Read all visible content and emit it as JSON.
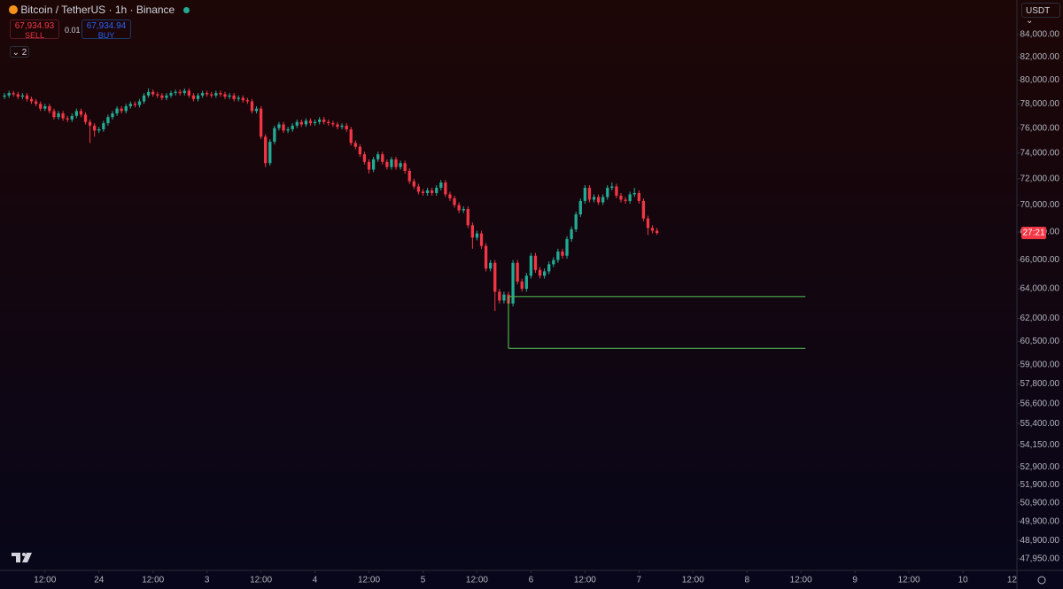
{
  "header": {
    "symbol": "Bitcoin / TetherUS · 1h · Binance",
    "sell_price": "67,934.93",
    "sell_label": "SELL",
    "quantity": "0.01",
    "buy_price": "67,934.94",
    "buy_label": "BUY",
    "indicators": "2",
    "currency": "USDT",
    "countdown": "27:21"
  },
  "chart_data": {
    "type": "candlestick",
    "log_scale": true,
    "grid": false,
    "up_color": "#22ab94",
    "down_color": "#f23645",
    "xlim": [
      2,
      228
    ],
    "ylim": [
      47400,
      87160
    ],
    "xticks": [
      {
        "value": 12,
        "label": "12:00"
      },
      24,
      {
        "value": 36,
        "label": "12:00"
      },
      {
        "value": 48,
        "label": "3"
      },
      {
        "value": 60,
        "label": "12:00"
      },
      {
        "value": 72,
        "label": "4"
      },
      {
        "value": 84,
        "label": "12:00"
      },
      {
        "value": 96,
        "label": "5"
      },
      {
        "value": 108,
        "label": "12:00"
      },
      {
        "value": 120,
        "label": "6"
      },
      {
        "value": 132,
        "label": "12:00"
      },
      {
        "value": 144,
        "label": "7"
      },
      {
        "value": 156,
        "label": "12:00"
      },
      {
        "value": 168,
        "label": "8"
      },
      {
        "value": 180,
        "label": "12:00"
      },
      {
        "value": 192,
        "label": "9"
      },
      {
        "value": 204,
        "label": "12:00"
      },
      {
        "value": 216,
        "label": "10"
      },
      {
        "value": 228,
        "label": "12"
      }
    ],
    "yticks": [
      {
        "value": 84000,
        "label": "84,000.00"
      },
      {
        "value": 82000,
        "label": "82,000.00"
      },
      {
        "value": 80000,
        "label": "80,000.00"
      },
      {
        "value": 78000,
        "label": "78,000.00"
      },
      {
        "value": 76000,
        "label": "76,000.00"
      },
      {
        "value": 74000,
        "label": "74,000.00"
      },
      {
        "value": 72000,
        "label": "72,000.00"
      },
      {
        "value": 70000,
        "label": "70,000.00"
      },
      {
        "value": 68000,
        "label": "68,000.00"
      },
      {
        "value": 66000,
        "label": "66,000.00"
      },
      {
        "value": 64000,
        "label": "64,000.00"
      },
      {
        "value": 62000,
        "label": "62,000.00"
      },
      {
        "value": 60500,
        "label": "60,500.00"
      },
      {
        "value": 59000,
        "label": "59,000.00"
      },
      {
        "value": 57800,
        "label": "57,800.00"
      },
      {
        "value": 56600,
        "label": "56,600.00"
      },
      {
        "value": 55400,
        "label": "55,400.00"
      },
      {
        "value": 54150,
        "label": "54,150.00"
      },
      {
        "value": 52900,
        "label": "52,900.00"
      },
      {
        "value": 51900,
        "label": "51,900.00"
      },
      {
        "value": 50900,
        "label": "50,900.00"
      },
      {
        "value": 49900,
        "label": "49,900.00"
      },
      {
        "value": 48900,
        "label": "48,900.00"
      },
      {
        "value": 47950,
        "label": "47,950.00"
      }
    ],
    "drawing": {
      "color": "#4caf50",
      "x": [
        115,
        181
      ],
      "levels": [
        63470,
        60050
      ]
    },
    "x": [
      3,
      4,
      5,
      6,
      7,
      8,
      9,
      10,
      11,
      12,
      13,
      14,
      15,
      16,
      17,
      18,
      19,
      20,
      21,
      22,
      23,
      24,
      25,
      26,
      27,
      28,
      29,
      30,
      31,
      32,
      33,
      34,
      35,
      36,
      37,
      38,
      39,
      40,
      41,
      42,
      43,
      44,
      45,
      46,
      47,
      48,
      49,
      50,
      51,
      52,
      53,
      54,
      55,
      56,
      57,
      58,
      59,
      60,
      61,
      62,
      63,
      64,
      65,
      66,
      67,
      68,
      69,
      70,
      71,
      72,
      73,
      74,
      75,
      76,
      77,
      78,
      79,
      80,
      81,
      82,
      83,
      84,
      85,
      86,
      87,
      88,
      89,
      90,
      91,
      92,
      93,
      94,
      95,
      96,
      97,
      98,
      99,
      100,
      101,
      102,
      103,
      104,
      105,
      106,
      107,
      108,
      109,
      110,
      111,
      112,
      113,
      114,
      115,
      116,
      117,
      118,
      119,
      120,
      121,
      122,
      123,
      124,
      125,
      126,
      127,
      128,
      129,
      130,
      131,
      132,
      133,
      134,
      135,
      136,
      137,
      138,
      139,
      140,
      141,
      142,
      143,
      144,
      145,
      146,
      147,
      148
    ],
    "ohlc": [
      [
        78600,
        78900,
        78400,
        78700
      ],
      [
        78700,
        79100,
        78500,
        78900
      ],
      [
        78900,
        79100,
        78600,
        78800
      ],
      [
        78800,
        79000,
        78400,
        78600
      ],
      [
        78600,
        78900,
        78400,
        78700
      ],
      [
        78700,
        78900,
        78200,
        78400
      ],
      [
        78400,
        78600,
        78000,
        78200
      ],
      [
        78200,
        78400,
        77800,
        78000
      ],
      [
        78000,
        78200,
        77400,
        77600
      ],
      [
        77600,
        78000,
        77400,
        77800
      ],
      [
        77800,
        78000,
        77200,
        77400
      ],
      [
        77400,
        77600,
        76700,
        76900
      ],
      [
        76900,
        77400,
        76700,
        77200
      ],
      [
        77200,
        77400,
        76600,
        76800
      ],
      [
        76800,
        77000,
        76500,
        76700
      ],
      [
        76700,
        77200,
        76500,
        77000
      ],
      [
        77000,
        77600,
        76800,
        77400
      ],
      [
        77400,
        77600,
        76900,
        77100
      ],
      [
        77100,
        77300,
        76300,
        76500
      ],
      [
        76500,
        76700,
        74800,
        76200
      ],
      [
        76200,
        76400,
        75300,
        75800
      ],
      [
        75800,
        76100,
        75600,
        75900
      ],
      [
        75900,
        76600,
        75700,
        76400
      ],
      [
        76400,
        77100,
        76200,
        76900
      ],
      [
        76900,
        77400,
        76700,
        77200
      ],
      [
        77200,
        77800,
        77000,
        77600
      ],
      [
        77600,
        77800,
        77200,
        77400
      ],
      [
        77400,
        78000,
        77200,
        77800
      ],
      [
        77800,
        78200,
        77600,
        78000
      ],
      [
        78000,
        78200,
        77700,
        77900
      ],
      [
        77900,
        78400,
        77700,
        78200
      ],
      [
        78200,
        78900,
        78000,
        78700
      ],
      [
        78700,
        79300,
        78500,
        79000
      ],
      [
        79000,
        79200,
        78600,
        78800
      ],
      [
        78800,
        79000,
        78500,
        78700
      ],
      [
        78700,
        78900,
        78300,
        78500
      ],
      [
        78500,
        78900,
        78300,
        78700
      ],
      [
        78700,
        79100,
        78500,
        78900
      ],
      [
        78900,
        79200,
        78700,
        79000
      ],
      [
        79000,
        79200,
        78700,
        78900
      ],
      [
        78900,
        79300,
        78700,
        79100
      ],
      [
        79100,
        79300,
        78500,
        78700
      ],
      [
        78700,
        78900,
        78200,
        78400
      ],
      [
        78400,
        78900,
        78200,
        78700
      ],
      [
        78700,
        79100,
        78500,
        78900
      ],
      [
        78900,
        79100,
        78600,
        78800
      ],
      [
        78800,
        79000,
        78500,
        78700
      ],
      [
        78700,
        79100,
        78500,
        78900
      ],
      [
        78900,
        79100,
        78600,
        78800
      ],
      [
        78800,
        79000,
        78400,
        78600
      ],
      [
        78600,
        78900,
        78400,
        78700
      ],
      [
        78700,
        78900,
        78200,
        78400
      ],
      [
        78400,
        78700,
        78200,
        78500
      ],
      [
        78500,
        78700,
        78100,
        78300
      ],
      [
        78300,
        78500,
        78000,
        78200
      ],
      [
        78200,
        78400,
        77200,
        77400
      ],
      [
        77400,
        77800,
        77200,
        77600
      ],
      [
        77600,
        77800,
        75100,
        75300
      ],
      [
        75300,
        75500,
        72900,
        73200
      ],
      [
        73200,
        75100,
        73000,
        74900
      ],
      [
        74900,
        76200,
        74700,
        76000
      ],
      [
        76000,
        76500,
        75800,
        76300
      ],
      [
        76300,
        76500,
        75600,
        75800
      ],
      [
        75800,
        76100,
        75600,
        75900
      ],
      [
        75900,
        76400,
        75700,
        76200
      ],
      [
        76200,
        76700,
        76000,
        76500
      ],
      [
        76500,
        76700,
        76100,
        76300
      ],
      [
        76300,
        76800,
        76100,
        76600
      ],
      [
        76600,
        76800,
        76200,
        76400
      ],
      [
        76400,
        76700,
        76200,
        76500
      ],
      [
        76500,
        76900,
        76300,
        76700
      ],
      [
        76700,
        76900,
        76300,
        76500
      ],
      [
        76500,
        76700,
        76200,
        76400
      ],
      [
        76400,
        76600,
        76100,
        76300
      ],
      [
        76300,
        76500,
        75900,
        76100
      ],
      [
        76100,
        76400,
        75900,
        76200
      ],
      [
        76200,
        76400,
        75700,
        75900
      ],
      [
        75900,
        76100,
        74600,
        74800
      ],
      [
        74800,
        75000,
        74300,
        74500
      ],
      [
        74500,
        74700,
        73700,
        73900
      ],
      [
        73900,
        74100,
        73100,
        73300
      ],
      [
        73300,
        73500,
        72400,
        72700
      ],
      [
        72700,
        73700,
        72500,
        73500
      ],
      [
        73500,
        74100,
        73300,
        73900
      ],
      [
        73900,
        74100,
        73100,
        73300
      ],
      [
        73300,
        73500,
        72700,
        72900
      ],
      [
        72900,
        73700,
        72700,
        73500
      ],
      [
        73500,
        73700,
        72700,
        72900
      ],
      [
        72900,
        73400,
        72700,
        73200
      ],
      [
        73200,
        73400,
        72400,
        72600
      ],
      [
        72600,
        72800,
        71600,
        71800
      ],
      [
        71800,
        72000,
        71200,
        71400
      ],
      [
        71400,
        71600,
        70800,
        71000
      ],
      [
        71000,
        71200,
        70700,
        70900
      ],
      [
        70900,
        71300,
        70700,
        71100
      ],
      [
        71100,
        71300,
        70700,
        70900
      ],
      [
        70900,
        71500,
        70700,
        71300
      ],
      [
        71300,
        71900,
        71100,
        71700
      ],
      [
        71700,
        71900,
        70600,
        70800
      ],
      [
        70800,
        71000,
        70300,
        70500
      ],
      [
        70500,
        70700,
        69800,
        70000
      ],
      [
        70000,
        70200,
        69400,
        69600
      ],
      [
        69600,
        69900,
        69400,
        69700
      ],
      [
        69700,
        69900,
        68300,
        68500
      ],
      [
        68500,
        68700,
        66800,
        67600
      ],
      [
        67600,
        68100,
        67400,
        67900
      ],
      [
        67900,
        68100,
        66800,
        67000
      ],
      [
        67000,
        67200,
        65200,
        65400
      ],
      [
        65400,
        66000,
        65200,
        65800
      ],
      [
        65800,
        66000,
        62500,
        63800
      ],
      [
        63800,
        64000,
        63000,
        63200
      ],
      [
        63200,
        63800,
        63000,
        63600
      ],
      [
        63600,
        63800,
        62800,
        63000
      ],
      [
        63000,
        66000,
        62800,
        65800
      ],
      [
        65800,
        66000,
        64300,
        64500
      ],
      [
        64500,
        64700,
        63800,
        64000
      ],
      [
        64000,
        65100,
        63800,
        64900
      ],
      [
        64900,
        66500,
        64700,
        66300
      ],
      [
        66300,
        66500,
        65100,
        65300
      ],
      [
        65300,
        65500,
        64700,
        64900
      ],
      [
        64900,
        65400,
        64700,
        65200
      ],
      [
        65200,
        65900,
        65000,
        65700
      ],
      [
        65700,
        66200,
        65500,
        66000
      ],
      [
        66000,
        66800,
        65800,
        66600
      ],
      [
        66600,
        66800,
        66100,
        66300
      ],
      [
        66300,
        67700,
        66100,
        67500
      ],
      [
        67500,
        68400,
        67300,
        68200
      ],
      [
        68200,
        69500,
        68000,
        69300
      ],
      [
        69300,
        70500,
        69100,
        70300
      ],
      [
        70300,
        71500,
        70100,
        71300
      ],
      [
        71300,
        71500,
        70200,
        70400
      ],
      [
        70400,
        70800,
        70200,
        70600
      ],
      [
        70600,
        70800,
        70000,
        70200
      ],
      [
        70200,
        70800,
        70000,
        70600
      ],
      [
        70600,
        71500,
        70400,
        71300
      ],
      [
        71300,
        71700,
        71100,
        71400
      ],
      [
        71400,
        71600,
        70500,
        70700
      ],
      [
        70700,
        70900,
        70200,
        70400
      ],
      [
        70400,
        70600,
        70100,
        70300
      ],
      [
        70300,
        71000,
        70100,
        70800
      ],
      [
        70800,
        71300,
        70600,
        70900
      ],
      [
        70900,
        71100,
        70100,
        70300
      ],
      [
        70300,
        70500,
        68800,
        69000
      ],
      [
        69000,
        69200,
        67800,
        68300
      ],
      [
        68300,
        68500,
        67900,
        68100
      ],
      [
        68100,
        68300,
        67800,
        67934.93
      ]
    ]
  }
}
